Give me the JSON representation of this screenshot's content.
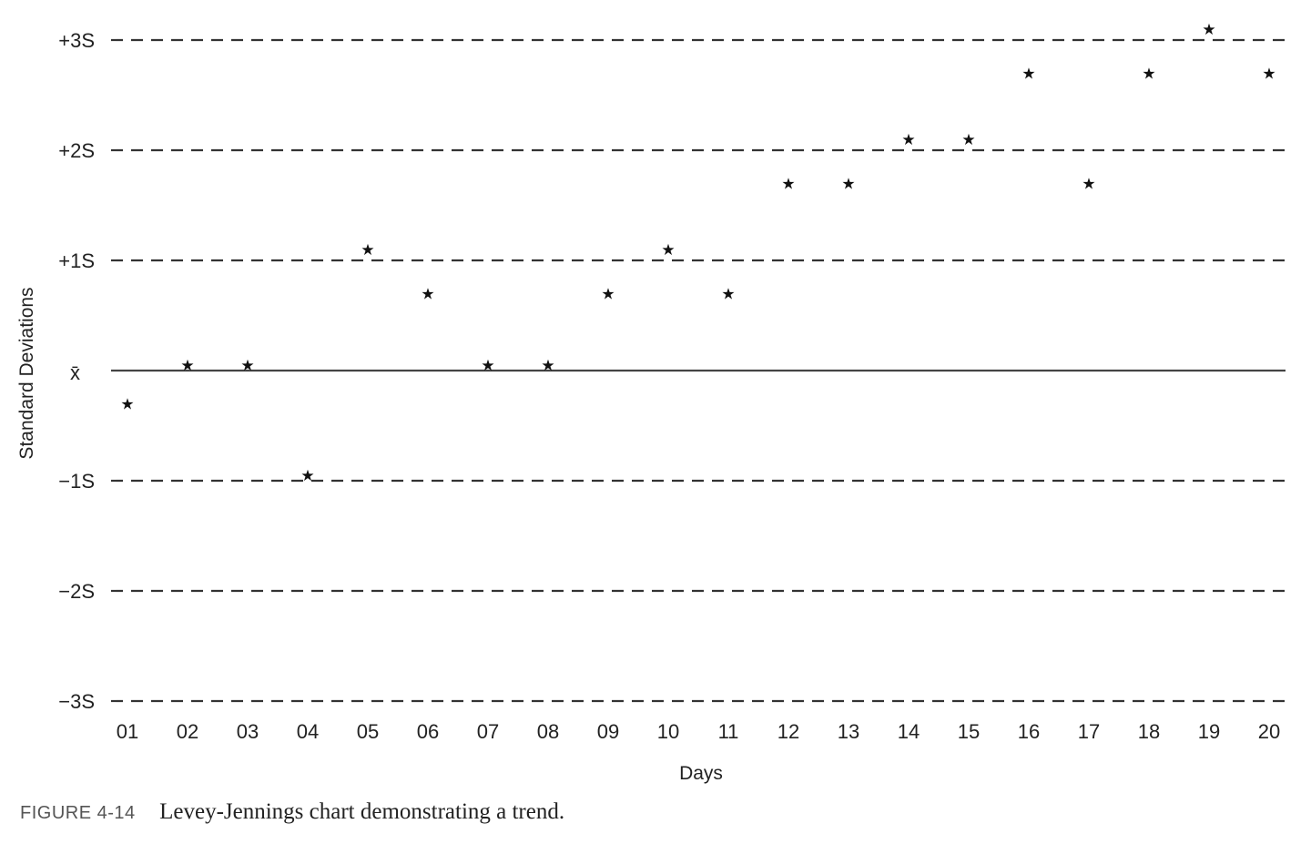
{
  "chart_data": {
    "type": "scatter",
    "xlabel": "Days",
    "ylabel": "Standard Deviations",
    "x": [
      "01",
      "02",
      "03",
      "04",
      "05",
      "06",
      "07",
      "08",
      "09",
      "10",
      "11",
      "12",
      "13",
      "14",
      "15",
      "16",
      "17",
      "18",
      "19",
      "20"
    ],
    "y": [
      -0.3,
      0.05,
      0.05,
      -0.95,
      1.1,
      0.7,
      0.05,
      0.05,
      0.7,
      1.1,
      0.7,
      1.7,
      1.7,
      2.1,
      2.1,
      2.7,
      1.7,
      2.7,
      3.1,
      2.7
    ],
    "marker": "★",
    "ylim": [
      -3,
      3
    ],
    "yticks": [
      {
        "value": 3,
        "label": "+3S",
        "style": "dashed"
      },
      {
        "value": 2,
        "label": "+2S",
        "style": "dashed"
      },
      {
        "value": 1,
        "label": "+1S",
        "style": "dashed"
      },
      {
        "value": 0,
        "label": "x̄",
        "style": "solid"
      },
      {
        "value": -1,
        "label": "−1S",
        "style": "dashed"
      },
      {
        "value": -2,
        "label": "−2S",
        "style": "dashed"
      },
      {
        "value": -3,
        "label": "−3S",
        "style": "dashed"
      }
    ],
    "grid": true
  },
  "caption": {
    "label": "FIGURE 4-14",
    "text": "Levey-Jennings chart demonstrating a trend."
  }
}
